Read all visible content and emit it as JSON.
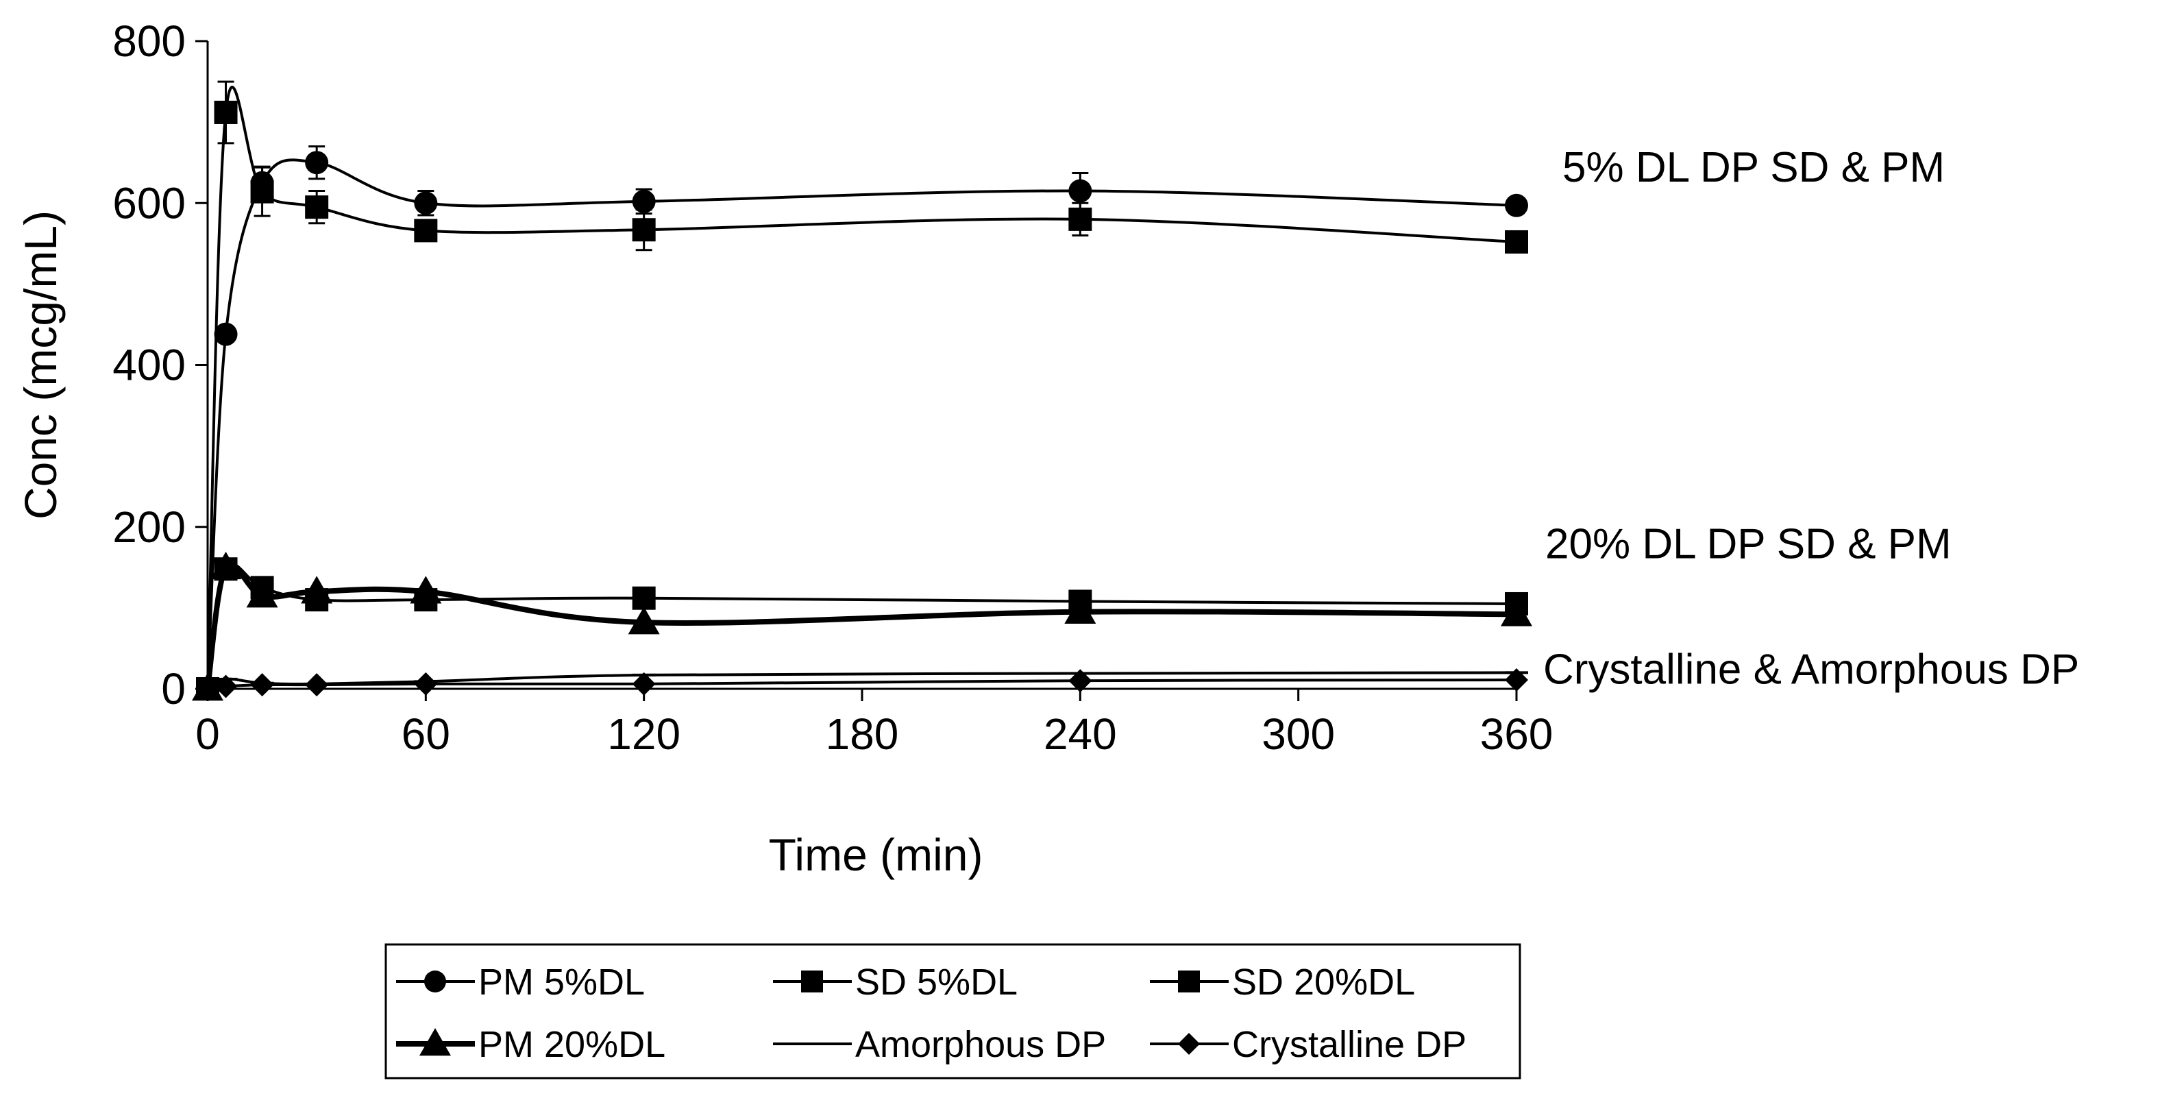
{
  "chart_data": {
    "type": "line",
    "title": "",
    "xlabel": "Time (min)",
    "ylabel": "Conc (mcg/mL)",
    "xlim": [
      0,
      360
    ],
    "ylim": [
      0,
      800
    ],
    "xticks": [
      0,
      60,
      120,
      180,
      240,
      300,
      360
    ],
    "yticks": [
      0,
      200,
      400,
      600,
      800
    ],
    "grid": false,
    "legend_position": "bottom",
    "series": [
      {
        "name": "PM 5%DL",
        "marker": "circle",
        "line": "normal",
        "x": [
          0,
          5,
          15,
          30,
          60,
          120,
          240,
          360
        ],
        "y": [
          0,
          438,
          625,
          650,
          600,
          602,
          615,
          597
        ],
        "err": [
          0,
          0,
          20,
          20,
          15,
          15,
          22,
          0
        ]
      },
      {
        "name": "SD 5%DL",
        "marker": "square",
        "line": "normal",
        "x": [
          0,
          5,
          15,
          30,
          60,
          120,
          240,
          360
        ],
        "y": [
          0,
          712,
          614,
          595,
          566,
          567,
          580,
          552
        ],
        "err": [
          0,
          38,
          30,
          20,
          12,
          25,
          20,
          0
        ]
      },
      {
        "name": "SD 20%DL",
        "marker": "square",
        "line": "normal",
        "x": [
          0,
          5,
          15,
          30,
          60,
          120,
          240,
          360
        ],
        "y": [
          0,
          148,
          125,
          110,
          110,
          112,
          108,
          105
        ],
        "err": [
          0,
          8,
          6,
          6,
          6,
          5,
          5,
          0
        ]
      },
      {
        "name": "PM 20%DL",
        "marker": "triangle",
        "line": "thick",
        "x": [
          0,
          5,
          15,
          30,
          60,
          120,
          240,
          360
        ],
        "y": [
          0,
          150,
          115,
          120,
          120,
          82,
          95,
          92
        ],
        "err": [
          0,
          0,
          0,
          0,
          0,
          0,
          0,
          0
        ]
      },
      {
        "name": "Amorphous DP",
        "marker": "dash",
        "line": "normal",
        "x": [
          0,
          5,
          15,
          30,
          60,
          120,
          240,
          360
        ],
        "y": [
          0,
          12,
          7,
          6,
          9,
          17,
          19,
          20
        ],
        "err": [
          0,
          0,
          0,
          0,
          0,
          0,
          0,
          0
        ]
      },
      {
        "name": "Crystalline DP",
        "marker": "diamond",
        "line": "normal",
        "x": [
          0,
          5,
          15,
          30,
          60,
          120,
          240,
          360
        ],
        "y": [
          0,
          3,
          5,
          5,
          6,
          6,
          10,
          11
        ],
        "err": [
          0,
          0,
          0,
          0,
          0,
          0,
          0,
          0
        ]
      }
    ],
    "annotations": [
      {
        "text": "5% DL DP SD & PM",
        "anchor_y": 645
      },
      {
        "text": "20% DL DP SD & PM",
        "anchor_y": 180
      },
      {
        "text": "Crystalline & Amorphous DP",
        "anchor_y": 25
      }
    ]
  }
}
